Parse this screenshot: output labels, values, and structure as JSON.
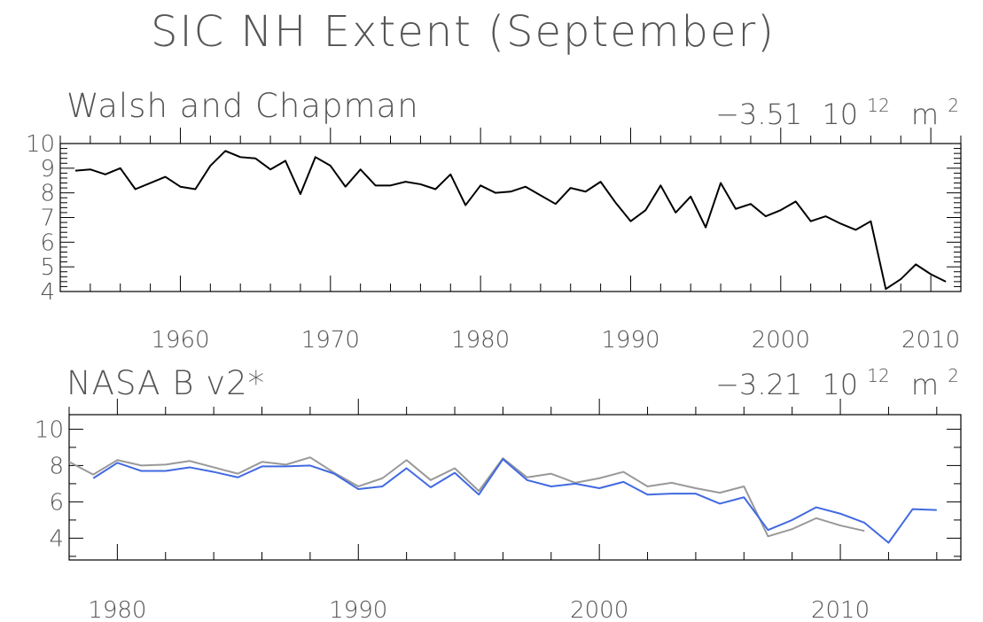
{
  "figure_title": "SIC NH Extent (September)",
  "chart_data": [
    {
      "type": "line",
      "title": "Walsh and Chapman",
      "trend": {
        "value": "−3.51",
        "unit_base": "10",
        "unit_exp": "12",
        "unit_tail": "m",
        "unit_tail_exp": "2"
      },
      "xlim": [
        1952,
        2012
      ],
      "ylim": [
        4,
        10
      ],
      "xticks": [
        1960,
        1970,
        1980,
        1990,
        2000,
        2010
      ],
      "yticks": [
        4,
        5,
        6,
        7,
        8,
        9,
        10
      ],
      "series": [
        {
          "color": "#000000",
          "x": [
            1953,
            1954,
            1955,
            1956,
            1957,
            1958,
            1959,
            1960,
            1961,
            1962,
            1963,
            1964,
            1965,
            1966,
            1967,
            1968,
            1969,
            1970,
            1971,
            1972,
            1973,
            1974,
            1975,
            1976,
            1977,
            1978,
            1979,
            1980,
            1981,
            1982,
            1983,
            1984,
            1985,
            1986,
            1987,
            1988,
            1989,
            1990,
            1991,
            1992,
            1993,
            1994,
            1995,
            1996,
            1997,
            1998,
            1999,
            2000,
            2001,
            2002,
            2003,
            2004,
            2005,
            2006,
            2007,
            2008,
            2009,
            2010,
            2011
          ],
          "y": [
            8.9,
            8.95,
            8.75,
            9.0,
            8.15,
            8.4,
            8.65,
            8.25,
            8.15,
            9.1,
            9.7,
            9.45,
            9.4,
            8.95,
            9.3,
            7.95,
            9.45,
            9.1,
            8.25,
            8.95,
            8.3,
            8.3,
            8.45,
            8.35,
            8.15,
            8.75,
            7.5,
            8.3,
            8.0,
            8.05,
            8.25,
            7.9,
            7.55,
            8.2,
            8.05,
            8.45,
            7.6,
            6.85,
            7.3,
            8.3,
            7.2,
            7.85,
            6.6,
            8.4,
            7.35,
            7.55,
            7.05,
            7.3,
            7.65,
            6.85,
            7.05,
            6.75,
            6.5,
            6.85,
            4.1,
            4.5,
            5.1,
            4.7,
            4.4
          ]
        }
      ]
    },
    {
      "type": "line",
      "title": "NASA B v2*",
      "trend": {
        "value": "−3.21",
        "unit_base": "10",
        "unit_exp": "12",
        "unit_tail": "m",
        "unit_tail_exp": "2"
      },
      "xlim": [
        1978,
        2015
      ],
      "ylim": [
        2.8,
        10.8
      ],
      "xticks": [
        1980,
        1990,
        2000,
        2010
      ],
      "yticks": [
        4,
        6,
        8,
        10
      ],
      "series": [
        {
          "color": "#999999",
          "x": [
            1978,
            1979,
            1980,
            1981,
            1982,
            1983,
            1984,
            1985,
            1986,
            1987,
            1988,
            1989,
            1990,
            1991,
            1992,
            1993,
            1994,
            1995,
            1996,
            1997,
            1998,
            1999,
            2000,
            2001,
            2002,
            2003,
            2004,
            2005,
            2006,
            2007,
            2008,
            2009,
            2010,
            2011
          ],
          "y": [
            8.2,
            7.5,
            8.3,
            8.0,
            8.05,
            8.25,
            7.9,
            7.55,
            8.2,
            8.05,
            8.45,
            7.6,
            6.85,
            7.3,
            8.3,
            7.2,
            7.85,
            6.6,
            8.4,
            7.35,
            7.55,
            7.05,
            7.3,
            7.65,
            6.85,
            7.05,
            6.75,
            6.5,
            6.85,
            4.1,
            4.5,
            5.1,
            4.7,
            4.4
          ]
        },
        {
          "color": "#4169e1",
          "x": [
            1979,
            1980,
            1981,
            1982,
            1983,
            1984,
            1985,
            1986,
            1987,
            1988,
            1989,
            1990,
            1991,
            1992,
            1993,
            1994,
            1995,
            1996,
            1997,
            1998,
            1999,
            2000,
            2001,
            2002,
            2003,
            2004,
            2005,
            2006,
            2007,
            2008,
            2009,
            2010,
            2011,
            2012,
            2013,
            2014
          ],
          "y": [
            7.3,
            8.15,
            7.7,
            7.7,
            7.9,
            7.65,
            7.35,
            7.95,
            7.95,
            8.0,
            7.55,
            6.7,
            6.85,
            7.85,
            6.8,
            7.6,
            6.4,
            8.35,
            7.2,
            6.85,
            7.0,
            6.75,
            7.1,
            6.4,
            6.45,
            6.45,
            5.9,
            6.25,
            4.45,
            5.0,
            5.7,
            5.35,
            4.85,
            3.75,
            5.6,
            5.55
          ]
        }
      ]
    }
  ]
}
